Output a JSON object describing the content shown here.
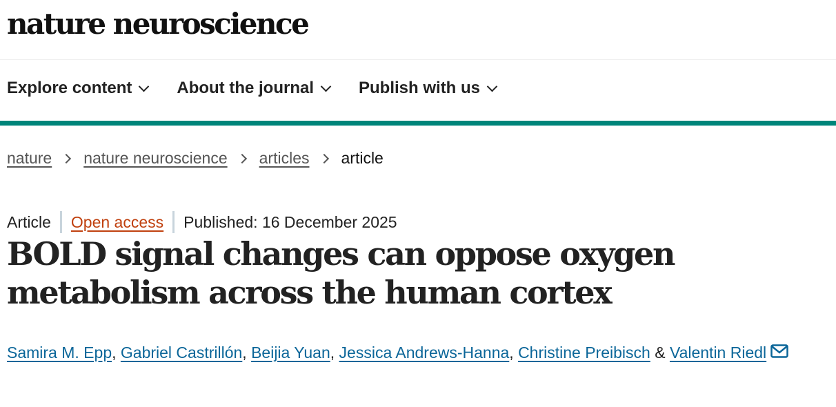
{
  "logo": "nature neuroscience",
  "nav": [
    "Explore content",
    "About the journal",
    "Publish with us"
  ],
  "breadcrumbs": [
    "nature",
    "nature neuroscience",
    "articles",
    "article"
  ],
  "meta": {
    "type": "Article",
    "access": "Open access",
    "published": "Published: 16 December 2025"
  },
  "title": "BOLD signal changes can oppose oxygen metabolism across the human cortex",
  "authors": [
    "Samira M. Epp",
    "Gabriel Castrillón",
    "Beijia Yuan",
    "Jessica Andrews-Hanna",
    "Christine Preibisch",
    "Valentin Riedl"
  ],
  "authors_sep": ", ",
  "authors_last_sep": " & ",
  "colors": {
    "teal": "#00857a",
    "link": "#0b6699",
    "open_access": "#c0400e"
  }
}
